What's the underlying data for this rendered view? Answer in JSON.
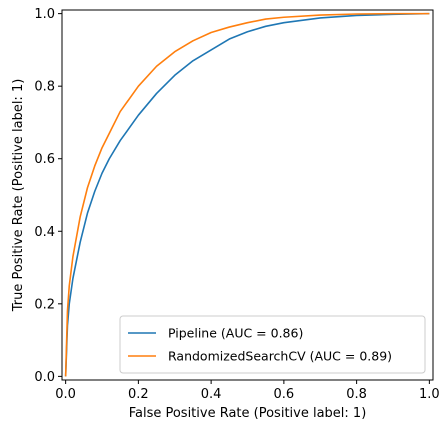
{
  "chart_data": {
    "type": "line",
    "xlabel": "False Positive Rate (Positive label: 1)",
    "ylabel": "True Positive Rate (Positive label: 1)",
    "xlim": [
      -0.01,
      1.01
    ],
    "ylim": [
      -0.01,
      1.01
    ],
    "x_ticks": [
      0.0,
      0.2,
      0.4,
      0.6,
      0.8,
      1.0
    ],
    "y_ticks": [
      0.0,
      0.2,
      0.4,
      0.6,
      0.8,
      1.0
    ],
    "x_tick_labels": [
      "0.0",
      "0.2",
      "0.4",
      "0.6",
      "0.8",
      "1.0"
    ],
    "y_tick_labels": [
      "0.0",
      "0.2",
      "0.4",
      "0.6",
      "0.8",
      "1.0"
    ],
    "grid": false,
    "legend_position": "lower-right",
    "series": [
      {
        "name": "Pipeline (AUC = 0.86)",
        "color": "#1f77b4",
        "x": [
          0,
          0.005,
          0.01,
          0.02,
          0.04,
          0.06,
          0.08,
          0.1,
          0.12,
          0.15,
          0.2,
          0.25,
          0.3,
          0.35,
          0.4,
          0.45,
          0.5,
          0.55,
          0.6,
          0.7,
          0.8,
          0.9,
          1.0
        ],
        "y": [
          0,
          0.14,
          0.2,
          0.27,
          0.37,
          0.45,
          0.51,
          0.56,
          0.6,
          0.65,
          0.72,
          0.78,
          0.83,
          0.87,
          0.9,
          0.93,
          0.95,
          0.965,
          0.975,
          0.988,
          0.995,
          0.998,
          1.0
        ]
      },
      {
        "name": "RandomizedSearchCV (AUC = 0.89)",
        "color": "#ff7f0e",
        "x": [
          0,
          0.005,
          0.01,
          0.02,
          0.04,
          0.06,
          0.08,
          0.1,
          0.12,
          0.15,
          0.2,
          0.25,
          0.3,
          0.35,
          0.4,
          0.45,
          0.5,
          0.55,
          0.6,
          0.7,
          0.8,
          0.9,
          1.0
        ],
        "y": [
          0,
          0.18,
          0.25,
          0.33,
          0.44,
          0.52,
          0.58,
          0.63,
          0.67,
          0.73,
          0.8,
          0.855,
          0.895,
          0.925,
          0.948,
          0.963,
          0.975,
          0.985,
          0.99,
          0.996,
          0.999,
          1.0,
          1.0
        ]
      }
    ]
  }
}
